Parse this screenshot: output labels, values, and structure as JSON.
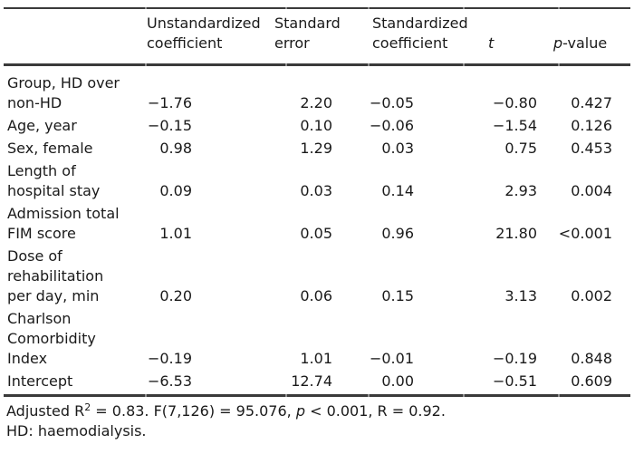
{
  "table": {
    "columns": {
      "unstd_line1": "Unstandardized",
      "unstd_line2": "coefficient",
      "se_line1": "Standard",
      "se_line2": "error",
      "std_line1": "Standardized",
      "std_line2": "coefficient",
      "t": "t",
      "p_italic": "p",
      "p_rest": "-value"
    },
    "rows": [
      {
        "label": "Group, HD over\nnon-HD",
        "unstd": "−1.76",
        "se": "2.20",
        "std": "−0.05",
        "t": "−0.80",
        "p": "0.427"
      },
      {
        "label": "Age, year",
        "unstd": "−0.15",
        "se": "0.10",
        "std": "−0.06",
        "t": "−1.54",
        "p": "0.126"
      },
      {
        "label": "Sex, female",
        "unstd": "0.98",
        "se": "1.29",
        "std": "0.03",
        "t": "0.75",
        "p": "0.453"
      },
      {
        "label": "Length of\nhospital stay",
        "unstd": "0.09",
        "se": "0.03",
        "std": "0.14",
        "t": "2.93",
        "p": "0.004"
      },
      {
        "label": "Admission total\nFIM score",
        "unstd": "1.01",
        "se": "0.05",
        "std": "0.96",
        "t": "21.80",
        "p": "<0.001"
      },
      {
        "label": "Dose of\nrehabilitation\nper day, min",
        "unstd": "0.20",
        "se": "0.06",
        "std": "0.15",
        "t": "3.13",
        "p": "0.002"
      },
      {
        "label": "Charlson\nComorbidity\nIndex",
        "unstd": "−0.19",
        "se": "1.01",
        "std": "−0.01",
        "t": "−0.19",
        "p": "0.848"
      },
      {
        "label": "Intercept",
        "unstd": "−6.53",
        "se": "12.74",
        "std": "0.00",
        "t": "−0.51",
        "p": "0.609"
      }
    ]
  },
  "footnote": {
    "part1": "Adjusted R",
    "sup": "2",
    "part2": " = 0.83. F(7,126) = 95.076, ",
    "p": "p",
    "part3": " < 0.001, R = 0.92.",
    "line2": "HD: haemodialysis."
  },
  "colors": {
    "rule": "#3a3a3a",
    "text": "#1a1a1a",
    "background": "#ffffff"
  }
}
